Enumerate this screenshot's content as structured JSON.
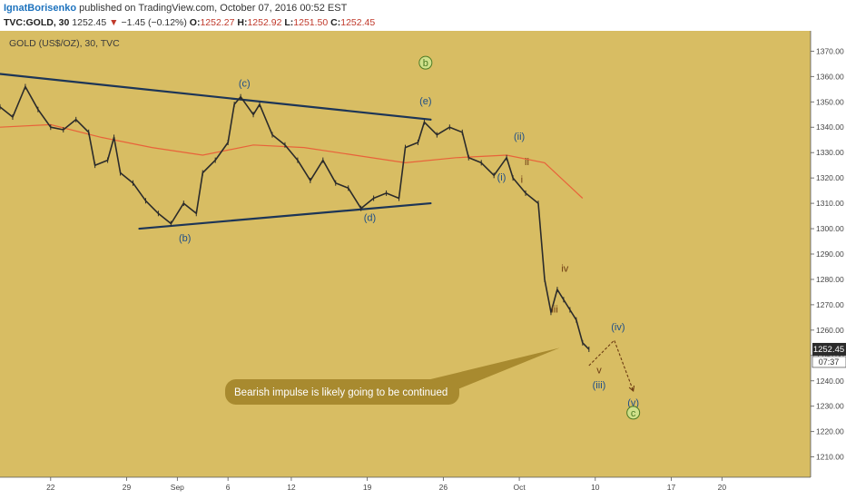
{
  "header": {
    "author": "IgnatBorisenko",
    "published_text": "published on TradingView.com, October 07, 2016 00:52 EST",
    "symbol": "TVC:GOLD, 30",
    "last": "1252.45",
    "change_arrow": "▼",
    "change": "−1.45 (−0.12%)",
    "o_label": "O:",
    "o_value": "1252.27",
    "h_label": "H:",
    "h_value": "1252.92",
    "l_label": "L:",
    "l_value": "1251.50",
    "c_label": "C:",
    "c_value": "1252.45"
  },
  "colors": {
    "chart_bg": "#d8bd63",
    "candles": "#2b2b2b",
    "moving_average": "#e8623a",
    "trendline": "#1d3557",
    "wave_label_blue": "#1d4e89",
    "wave_label_brown": "#6b3a12",
    "wave_label_green": "#4c7a24",
    "callout_bg": "#a88a2f",
    "callout_text": "#ffffff",
    "price_tag_bg": "#2b2b2b"
  },
  "chart_data": {
    "type": "line",
    "title": "GOLD (US$/OZ), 30, TVC",
    "ylim": [
      1202,
      1378
    ],
    "xlim": [
      0,
      64
    ],
    "x_ticks": [
      {
        "x": 4,
        "label": "22"
      },
      {
        "x": 10,
        "label": "29"
      },
      {
        "x": 14,
        "label": "Sep"
      },
      {
        "x": 18,
        "label": "6"
      },
      {
        "x": 23,
        "label": "12"
      },
      {
        "x": 29,
        "label": "19"
      },
      {
        "x": 35,
        "label": "26"
      },
      {
        "x": 41,
        "label": "Oct"
      },
      {
        "x": 47,
        "label": "10"
      },
      {
        "x": 53,
        "label": "17"
      },
      {
        "x": 57,
        "label": "20"
      }
    ],
    "y_ticks": [
      1210,
      1220,
      1230,
      1240,
      1250,
      1260,
      1270,
      1280,
      1290,
      1300,
      1310,
      1320,
      1330,
      1340,
      1350,
      1360,
      1370
    ],
    "price_series": [
      {
        "x": 0,
        "y": 1348
      },
      {
        "x": 1,
        "y": 1344
      },
      {
        "x": 2,
        "y": 1356
      },
      {
        "x": 3,
        "y": 1347
      },
      {
        "x": 4,
        "y": 1340
      },
      {
        "x": 5,
        "y": 1339
      },
      {
        "x": 6,
        "y": 1343
      },
      {
        "x": 7,
        "y": 1338
      },
      {
        "x": 7.5,
        "y": 1325
      },
      {
        "x": 8.5,
        "y": 1327
      },
      {
        "x": 9,
        "y": 1336
      },
      {
        "x": 9.5,
        "y": 1322
      },
      {
        "x": 10.5,
        "y": 1318
      },
      {
        "x": 11.5,
        "y": 1311
      },
      {
        "x": 12.5,
        "y": 1306
      },
      {
        "x": 13.5,
        "y": 1302
      },
      {
        "x": 14.5,
        "y": 1310
      },
      {
        "x": 15.5,
        "y": 1306
      },
      {
        "x": 16,
        "y": 1322
      },
      {
        "x": 17,
        "y": 1327
      },
      {
        "x": 18,
        "y": 1334
      },
      {
        "x": 18.5,
        "y": 1349
      },
      {
        "x": 19,
        "y": 1352
      },
      {
        "x": 20,
        "y": 1345
      },
      {
        "x": 20.5,
        "y": 1349
      },
      {
        "x": 21.5,
        "y": 1337
      },
      {
        "x": 22.5,
        "y": 1333
      },
      {
        "x": 23.5,
        "y": 1327
      },
      {
        "x": 24.5,
        "y": 1319
      },
      {
        "x": 25.5,
        "y": 1327
      },
      {
        "x": 26.5,
        "y": 1318
      },
      {
        "x": 27.5,
        "y": 1316
      },
      {
        "x": 28.5,
        "y": 1308
      },
      {
        "x": 29.5,
        "y": 1312
      },
      {
        "x": 30.5,
        "y": 1314
      },
      {
        "x": 31.5,
        "y": 1312
      },
      {
        "x": 32,
        "y": 1332
      },
      {
        "x": 33,
        "y": 1334
      },
      {
        "x": 33.5,
        "y": 1342
      },
      {
        "x": 34.5,
        "y": 1337
      },
      {
        "x": 35.5,
        "y": 1340
      },
      {
        "x": 36.5,
        "y": 1338
      },
      {
        "x": 37,
        "y": 1328
      },
      {
        "x": 38,
        "y": 1326
      },
      {
        "x": 39,
        "y": 1321
      },
      {
        "x": 40,
        "y": 1328
      },
      {
        "x": 40.5,
        "y": 1320
      },
      {
        "x": 41.5,
        "y": 1314
      },
      {
        "x": 42.5,
        "y": 1310
      },
      {
        "x": 43,
        "y": 1280
      },
      {
        "x": 43.5,
        "y": 1267
      },
      {
        "x": 44,
        "y": 1276
      },
      {
        "x": 44.5,
        "y": 1272
      },
      {
        "x": 45,
        "y": 1268
      },
      {
        "x": 45.5,
        "y": 1264
      },
      {
        "x": 46,
        "y": 1255
      },
      {
        "x": 46.5,
        "y": 1252.45
      }
    ],
    "moving_average": [
      {
        "x": 0,
        "y": 1340
      },
      {
        "x": 4,
        "y": 1341
      },
      {
        "x": 8,
        "y": 1336
      },
      {
        "x": 12,
        "y": 1332
      },
      {
        "x": 16,
        "y": 1329
      },
      {
        "x": 20,
        "y": 1333
      },
      {
        "x": 24,
        "y": 1332
      },
      {
        "x": 28,
        "y": 1329
      },
      {
        "x": 32,
        "y": 1326
      },
      {
        "x": 36,
        "y": 1328
      },
      {
        "x": 40,
        "y": 1329
      },
      {
        "x": 43,
        "y": 1326
      },
      {
        "x": 46,
        "y": 1312
      }
    ],
    "trendlines": [
      {
        "x1": 0,
        "y1": 1361,
        "x2": 34,
        "y2": 1343
      },
      {
        "x1": 11,
        "y1": 1300,
        "x2": 34,
        "y2": 1310
      }
    ],
    "projection": [
      {
        "x": 46.5,
        "y": 1246
      },
      {
        "x": 48.5,
        "y": 1256
      },
      {
        "x": 50,
        "y": 1236
      }
    ],
    "wave_labels": [
      {
        "text": "(c)",
        "x": 19.3,
        "y": 1356,
        "tone": "blue",
        "circled": false
      },
      {
        "text": "(b)",
        "x": 14.6,
        "y": 1295,
        "tone": "blue",
        "circled": false
      },
      {
        "text": "(d)",
        "x": 29.2,
        "y": 1303,
        "tone": "blue",
        "circled": false
      },
      {
        "text": "(e)",
        "x": 33.6,
        "y": 1349,
        "tone": "blue",
        "circled": false
      },
      {
        "text": "b",
        "x": 33.6,
        "y": 1364,
        "tone": "green",
        "circled": true
      },
      {
        "text": "(i)",
        "x": 39.6,
        "y": 1319,
        "tone": "blue",
        "circled": false
      },
      {
        "text": "(ii)",
        "x": 41.0,
        "y": 1335,
        "tone": "blue",
        "circled": false
      },
      {
        "text": "ii",
        "x": 41.6,
        "y": 1325,
        "tone": "brown",
        "circled": false
      },
      {
        "text": "i",
        "x": 41.2,
        "y": 1318,
        "tone": "brown",
        "circled": false
      },
      {
        "text": "iv",
        "x": 44.6,
        "y": 1283,
        "tone": "brown",
        "circled": false
      },
      {
        "text": "iii",
        "x": 43.8,
        "y": 1267,
        "tone": "brown",
        "circled": false
      },
      {
        "text": "(iv)",
        "x": 48.8,
        "y": 1260,
        "tone": "blue",
        "circled": false
      },
      {
        "text": "v",
        "x": 47.3,
        "y": 1243,
        "tone": "brown",
        "circled": false
      },
      {
        "text": "(iii)",
        "x": 47.3,
        "y": 1237,
        "tone": "blue",
        "circled": false
      },
      {
        "text": "(v)",
        "x": 50.0,
        "y": 1230,
        "tone": "blue",
        "circled": false
      },
      {
        "text": "c",
        "x": 50.0,
        "y": 1226,
        "tone": "green",
        "circled": true
      }
    ],
    "annotation": {
      "text": "Bearish impulse is likely going to be continued",
      "anchor_x": 44.2,
      "anchor_y": 1253
    },
    "last_price_label": "1252.45",
    "countdown_label": "07:37"
  }
}
